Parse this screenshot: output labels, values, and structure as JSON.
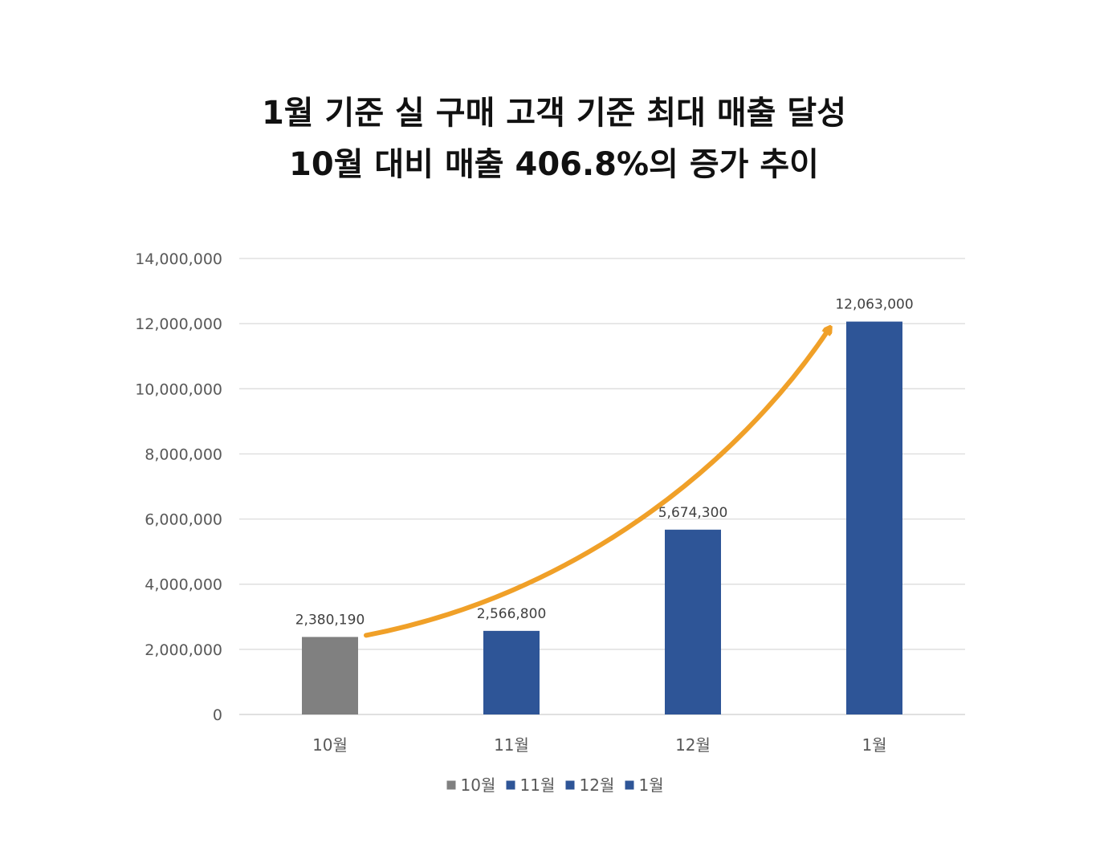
{
  "title_lines": [
    "1월 기준 실 구매 고객 기준 최대 매출 달성",
    "10월 대비 매출 406.8%의 증가 추이"
  ],
  "colors": {
    "baseline_bar": "#808080",
    "highlight_bar": "#2E5597",
    "trend_arrow": "#F0A028",
    "gridline": "#D9D9D9",
    "text": "#595959"
  },
  "chart_data": {
    "type": "bar",
    "categories": [
      "10월",
      "11월",
      "12월",
      "1월"
    ],
    "values": [
      2380190,
      2566800,
      5674300,
      12063000
    ],
    "value_labels": [
      "2,380,190",
      "2,566,800",
      "5,674,300",
      "12,063,000"
    ],
    "bar_colors": [
      "#808080",
      "#2E5597",
      "#2E5597",
      "#2E5597"
    ],
    "ylim": [
      0,
      14000000
    ],
    "yticks": [
      0,
      2000000,
      4000000,
      6000000,
      8000000,
      10000000,
      12000000,
      14000000
    ],
    "ytick_labels": [
      "0",
      "2,000,000",
      "4,000,000",
      "6,000,000",
      "8,000,000",
      "10,000,000",
      "12,000,000",
      "14,000,000"
    ],
    "grid": true,
    "legend": {
      "placement": "bottom",
      "entries": [
        "10월",
        "11월",
        "12월",
        "1월"
      ]
    },
    "annotation": "curved arrow from 10월 bar to 1월 bar indicating upward trend"
  }
}
